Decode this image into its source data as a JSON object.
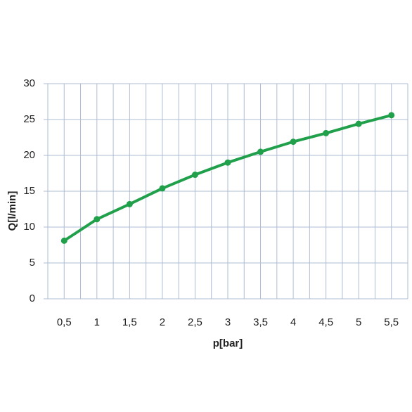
{
  "chart_data": {
    "type": "line",
    "x_label": "p[bar]",
    "y_label": "Q[l/min]",
    "categories": [
      "0,5",
      "1",
      "1,5",
      "2",
      "2,5",
      "3",
      "3,5",
      "4",
      "4,5",
      "5",
      "5,5"
    ],
    "series": [
      {
        "name": "Q",
        "color": "#20a04b",
        "values": [
          8.1,
          11.1,
          13.2,
          15.4,
          17.3,
          19.0,
          20.5,
          21.9,
          23.1,
          24.4,
          25.6
        ]
      }
    ],
    "ylim": [
      0,
      30
    ],
    "yticks": [
      0,
      5,
      10,
      15,
      20,
      25,
      30
    ],
    "grid": true,
    "grid_color": "#aebcd3"
  }
}
